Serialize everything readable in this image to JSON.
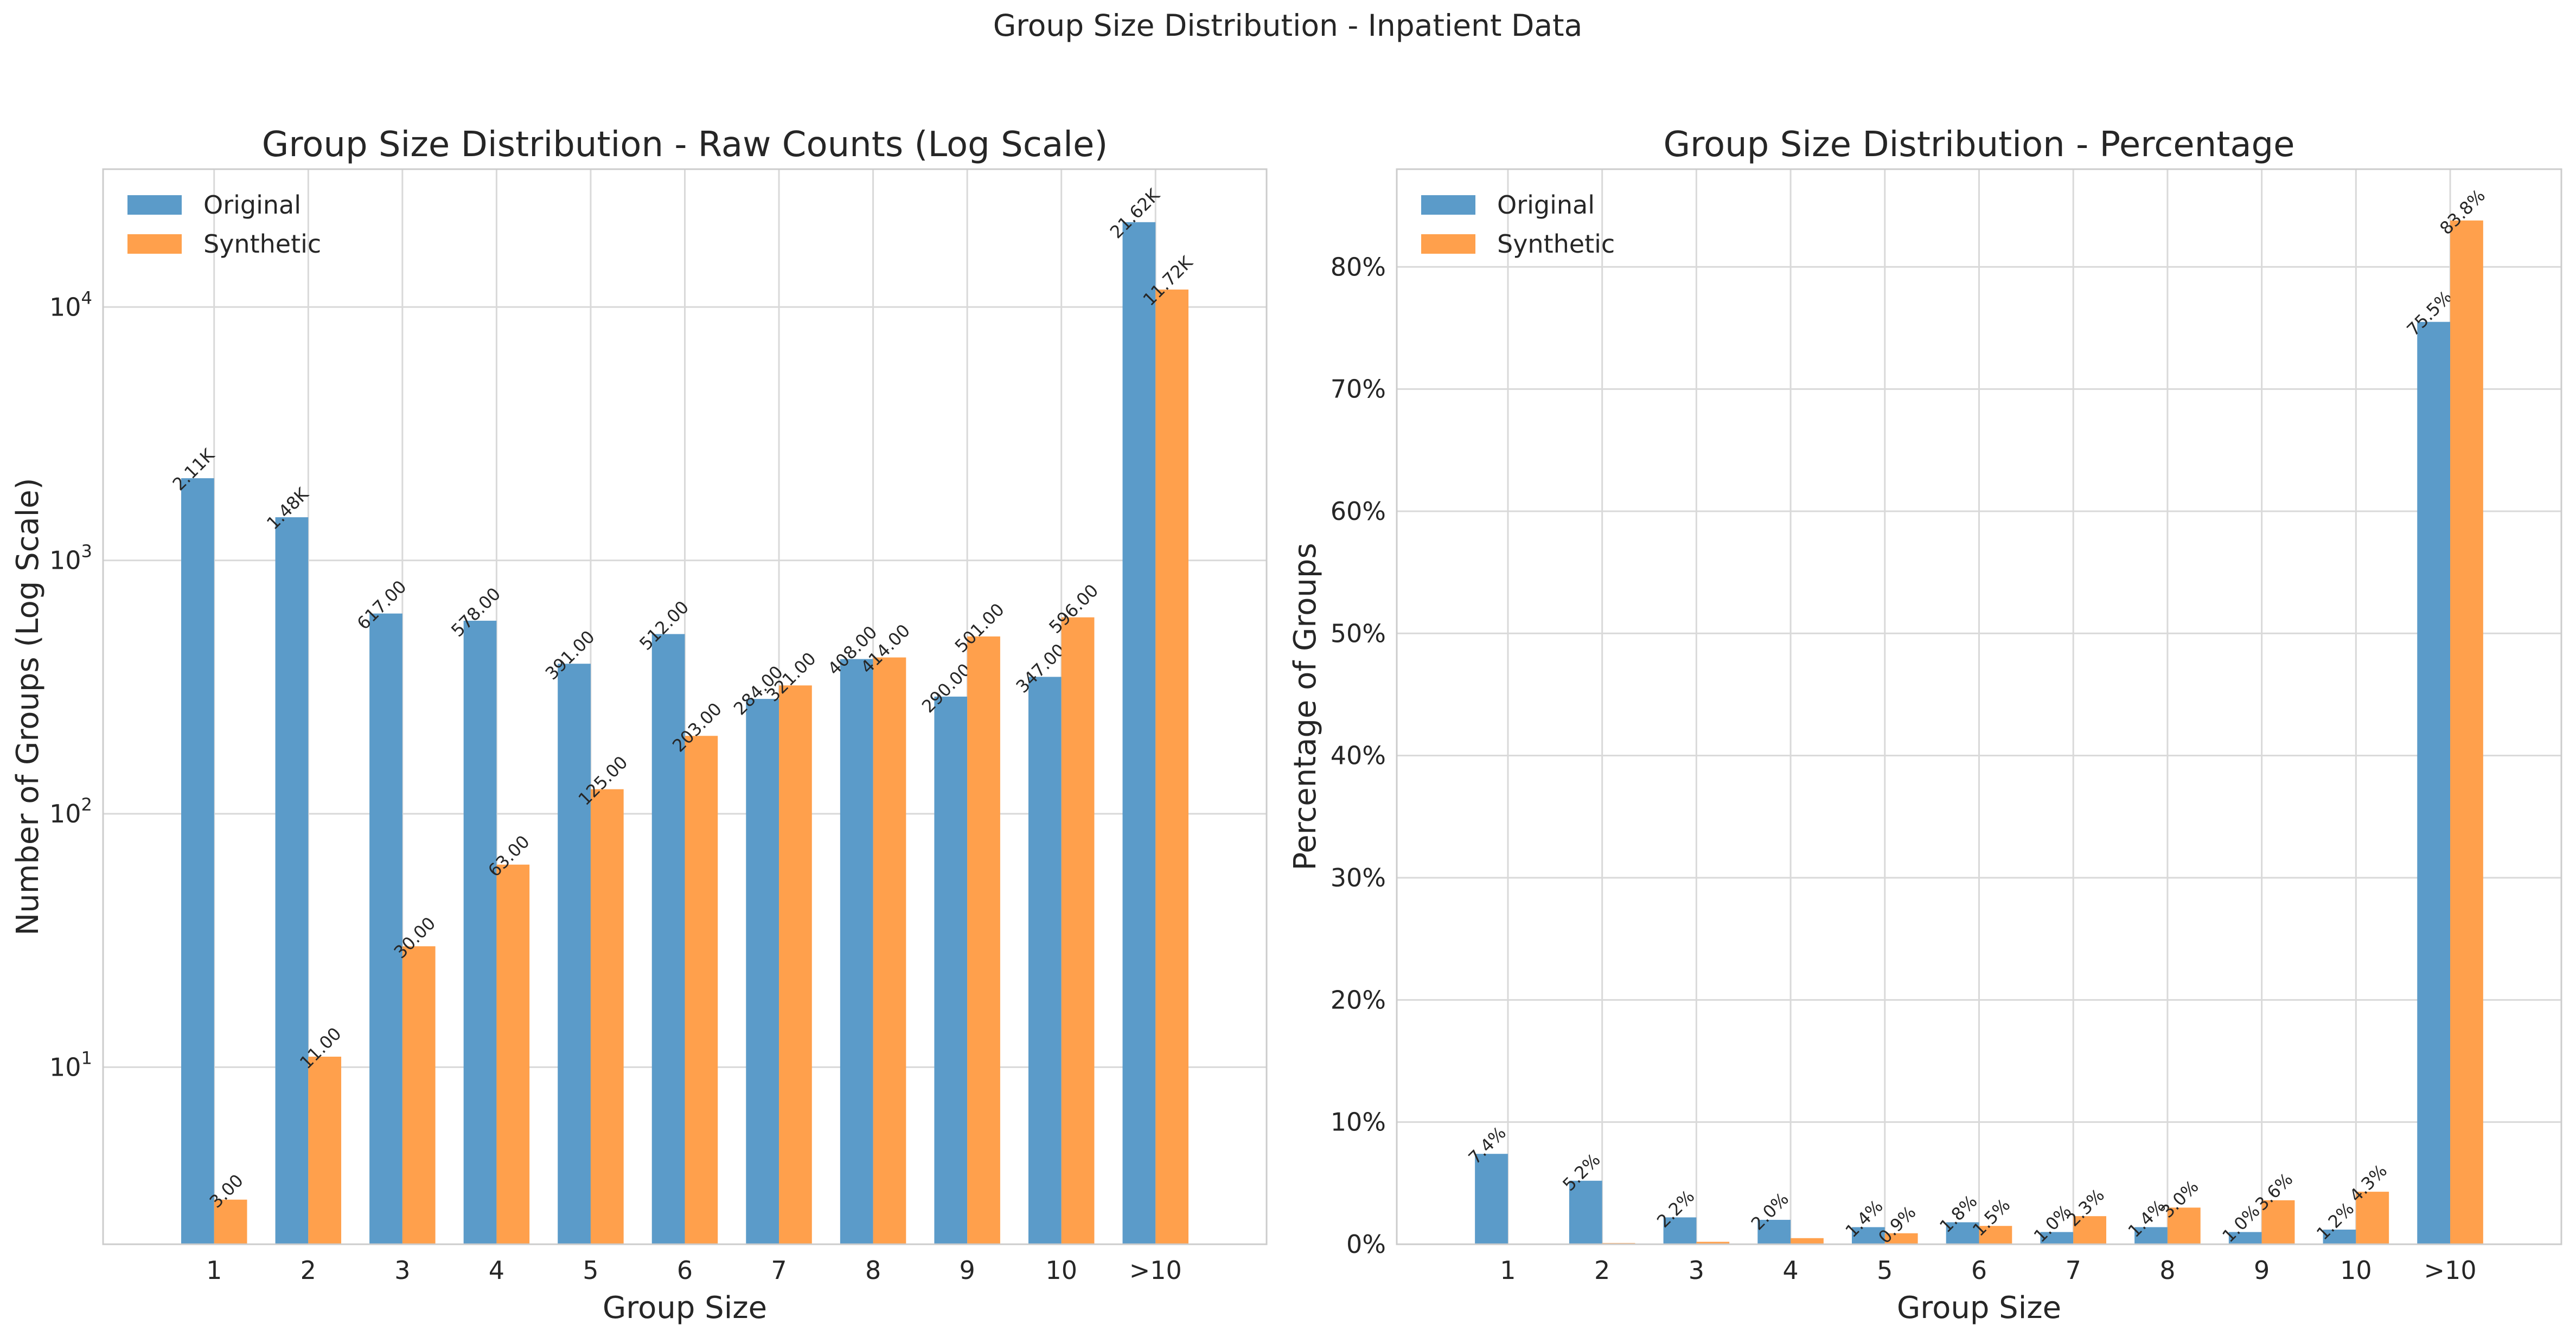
{
  "figure_title": "Group Size Distribution - Inpatient Data",
  "chart_data": [
    {
      "type": "bar",
      "title": "Group Size Distribution - Raw Counts (Log Scale)",
      "xlabel": "Group Size",
      "ylabel": "Number of Groups (Log Scale)",
      "yscale": "log",
      "ylim": [
        2,
        35000
      ],
      "y_ticks": [
        10,
        100,
        1000,
        10000
      ],
      "y_tick_labels": [
        {
          "base": "10",
          "exp": "1"
        },
        {
          "base": "10",
          "exp": "2"
        },
        {
          "base": "10",
          "exp": "3"
        },
        {
          "base": "10",
          "exp": "4"
        }
      ],
      "grid": true,
      "legend": "upper-left",
      "categories": [
        "1",
        "2",
        "3",
        "4",
        "5",
        "6",
        "7",
        "8",
        "9",
        "10",
        ">10"
      ],
      "series": [
        {
          "name": "Original",
          "color": "#5b9bc9",
          "values": [
            2110,
            1480,
            617,
            578,
            391,
            512,
            284,
            408,
            290,
            347,
            21620
          ],
          "labels": [
            "2.11K",
            "1.48K",
            "617.00",
            "578.00",
            "391.00",
            "512.00",
            "284.00",
            "408.00",
            "290.00",
            "347.00",
            "21.62K"
          ]
        },
        {
          "name": "Synthetic",
          "color": "#ffa04c",
          "values": [
            3,
            11,
            30,
            63,
            125,
            203,
            321,
            414,
            501,
            596,
            11720
          ],
          "labels": [
            "3.00",
            "11.00",
            "30.00",
            "63.00",
            "125.00",
            "203.00",
            "321.00",
            "414.00",
            "501.00",
            "596.00",
            "11.72K"
          ]
        }
      ]
    },
    {
      "type": "bar",
      "title": "Group Size Distribution - Percentage",
      "xlabel": "Group Size",
      "ylabel": "Percentage of Groups",
      "yscale": "linear",
      "ylim": [
        0,
        88
      ],
      "y_ticks": [
        0,
        10,
        20,
        30,
        40,
        50,
        60,
        70,
        80
      ],
      "y_tick_labels": [
        "0%",
        "10%",
        "20%",
        "30%",
        "40%",
        "50%",
        "60%",
        "70%",
        "80%"
      ],
      "grid": true,
      "legend": "upper-left",
      "categories": [
        "1",
        "2",
        "3",
        "4",
        "5",
        "6",
        "7",
        "8",
        "9",
        "10",
        ">10"
      ],
      "series": [
        {
          "name": "Original",
          "color": "#5b9bc9",
          "values": [
            7.4,
            5.2,
            2.2,
            2.0,
            1.4,
            1.8,
            1.0,
            1.4,
            1.0,
            1.2,
            75.5
          ],
          "labels": [
            "7.4%",
            "5.2%",
            "2.2%",
            "2.0%",
            "1.4%",
            "1.8%",
            "1.0%",
            "1.4%",
            "1.0%",
            "1.2%",
            "75.5%"
          ]
        },
        {
          "name": "Synthetic",
          "color": "#ffa04c",
          "values": [
            0.0,
            0.1,
            0.2,
            0.5,
            0.9,
            1.5,
            2.3,
            3.0,
            3.6,
            4.3,
            83.8
          ],
          "labels": [
            "",
            "",
            "",
            "",
            "0.9%",
            "1.5%",
            "2.3%",
            "3.0%",
            "3.6%",
            "4.3%",
            "83.8%"
          ]
        }
      ]
    }
  ]
}
